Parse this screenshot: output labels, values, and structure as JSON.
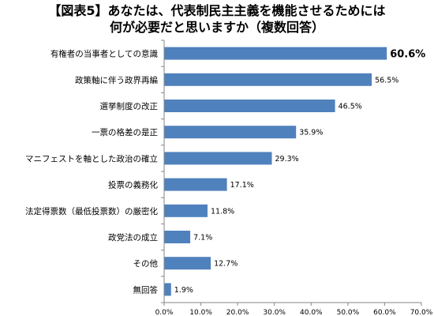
{
  "title_line1": "【図表5】あなたは、代表制民主主義を機能させるためには",
  "title_line2": "何が必要だと思いますか（複数回答）",
  "chart_data": {
    "type": "bar",
    "orientation": "horizontal",
    "categories": [
      "有権者の当事者としての意識",
      "政策軸に伴う政界再編",
      "選挙制度の改正",
      "一票の格差の是正",
      "マニフェストを軸とした政治の確立",
      "投票の義務化",
      "法定得票数（最低投票数）の厳密化",
      "政党法の成立",
      "その他",
      "無回答"
    ],
    "values": [
      60.6,
      56.5,
      46.5,
      35.9,
      29.3,
      17.1,
      11.8,
      7.1,
      12.7,
      1.9
    ],
    "value_labels": [
      "60.6%",
      "56.5%",
      "46.5%",
      "35.9%",
      "29.3%",
      "17.1%",
      "11.8%",
      "7.1%",
      "12.7%",
      "1.9%"
    ],
    "xlim": [
      0,
      70
    ],
    "ticks": [
      0,
      10,
      20,
      30,
      40,
      50,
      60,
      70
    ],
    "tick_labels": [
      "0.0%",
      "10.0%",
      "20.0%",
      "30.0%",
      "40.0%",
      "50.0%",
      "60.0%",
      "70.0%"
    ],
    "bar_color": "#4F81BD",
    "grid": false,
    "legend": "none",
    "highlight_index": 0
  }
}
